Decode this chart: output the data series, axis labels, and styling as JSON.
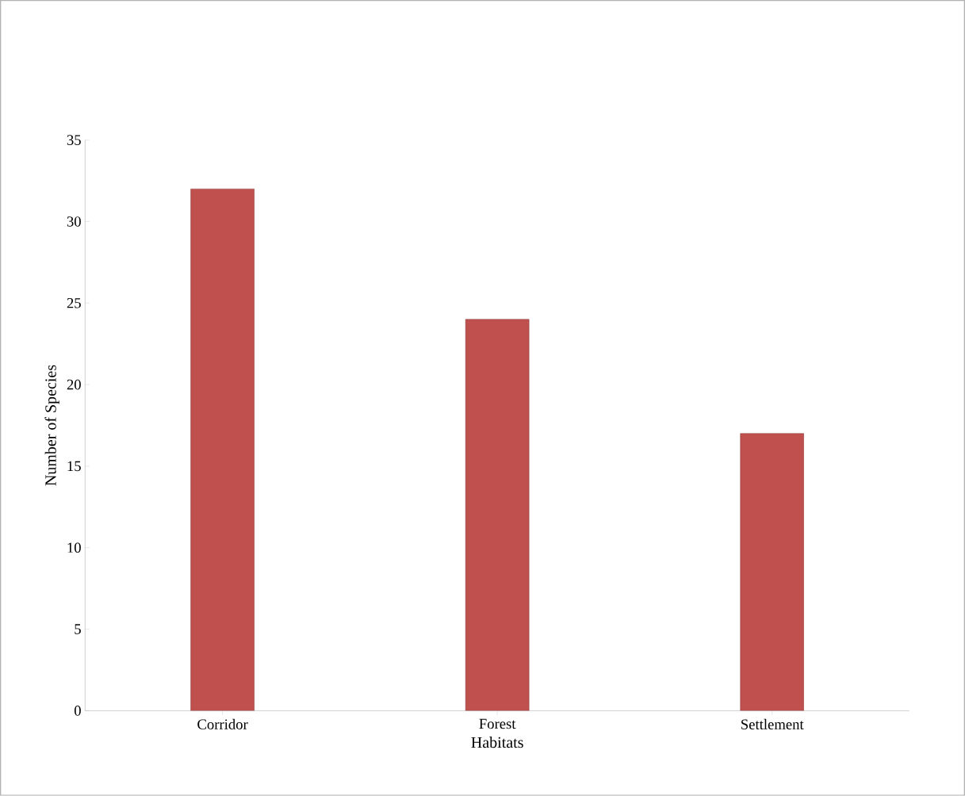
{
  "chart_data": {
    "type": "bar",
    "xlabel": "Habitats",
    "ylabel": "Number of  Species",
    "categories": [
      "Corridor",
      "Forest",
      "Settlement"
    ],
    "values": [
      32,
      24,
      17
    ],
    "color": "#c0504d",
    "ylim": [
      0,
      35
    ],
    "yticks": [
      0,
      5,
      10,
      15,
      20,
      25,
      30,
      35
    ],
    "grid": false
  }
}
